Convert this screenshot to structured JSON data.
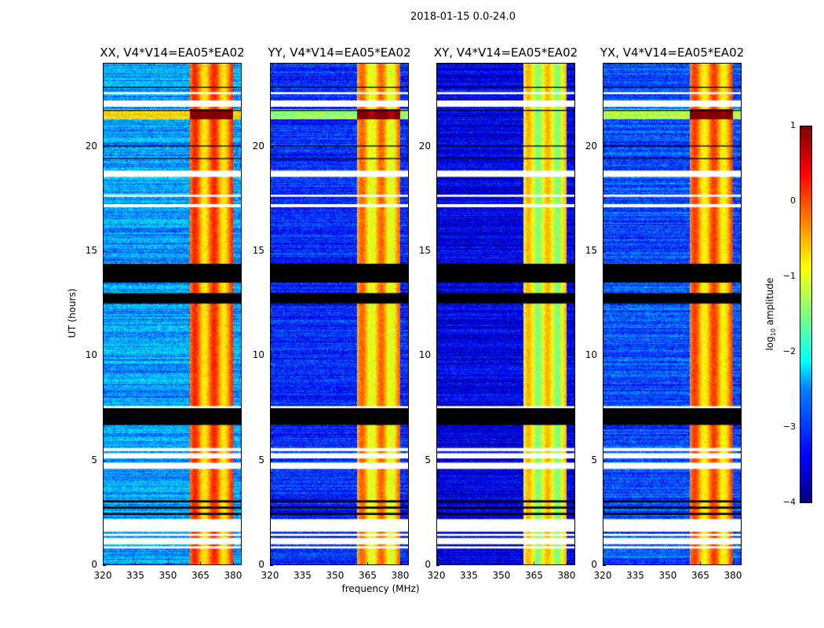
{
  "chart_data": {
    "type": "heatmap",
    "title": "2018-01-15 0.0-24.0",
    "xlabel": "frequency (MHz)",
    "ylabel": "UT (hours)",
    "xlim": [
      320,
      384
    ],
    "ylim": [
      0,
      24
    ],
    "x_ticks": [
      "320",
      "335",
      "350",
      "365",
      "380"
    ],
    "x_tick_values": [
      320,
      335,
      350,
      365,
      380
    ],
    "y_ticks": [
      "0",
      "5",
      "10",
      "15",
      "20"
    ],
    "y_tick_values": [
      0,
      5,
      10,
      15,
      20
    ],
    "colorbar": {
      "label": "log10 amplitude",
      "label_main": "log",
      "label_sub": "10",
      "label_rest": " amplitude",
      "range": [
        -4,
        1
      ],
      "ticks": [
        "1",
        "0",
        "−1",
        "−2",
        "−3",
        "−4"
      ],
      "tick_values": [
        1,
        0,
        -1,
        -2,
        -3,
        -4
      ],
      "colormap": "jet"
    },
    "high_amplitude_band_mhz": [
      360,
      380
    ],
    "flagged_white_hours": [
      [
        0.8,
        0.9
      ],
      [
        1.0,
        1.3
      ],
      [
        1.4,
        1.5
      ],
      [
        1.6,
        2.2
      ],
      [
        4.6,
        4.9
      ],
      [
        5.1,
        5.35
      ],
      [
        5.45,
        5.6
      ],
      [
        7.5,
        7.6
      ],
      [
        17.1,
        17.25
      ],
      [
        17.6,
        17.7
      ],
      [
        18.55,
        18.85
      ],
      [
        21.9,
        22.2
      ],
      [
        22.5,
        22.6
      ]
    ],
    "flagged_black_hours": [
      [
        2.4,
        2.5
      ],
      [
        2.7,
        2.8
      ],
      [
        3.0,
        3.1
      ],
      [
        6.7,
        7.5
      ],
      [
        12.5,
        13.0
      ],
      [
        13.5,
        14.4
      ],
      [
        19.4,
        19.45
      ],
      [
        20.0,
        20.05
      ],
      [
        21.7,
        21.75
      ],
      [
        22.8,
        22.85
      ]
    ],
    "panels": [
      {
        "title": "XX, V4*V14=EA05*EA02",
        "background_level": -2.6,
        "band_level": -0.3
      },
      {
        "title": "YY, V4*V14=EA05*EA02",
        "background_level": -3.2,
        "band_level": -0.6
      },
      {
        "title": "XY, V4*V14=EA05*EA02",
        "background_level": -3.5,
        "band_level": -1.0
      },
      {
        "title": "YX, V4*V14=EA05*EA02",
        "background_level": -3.0,
        "band_level": -0.4
      }
    ]
  }
}
